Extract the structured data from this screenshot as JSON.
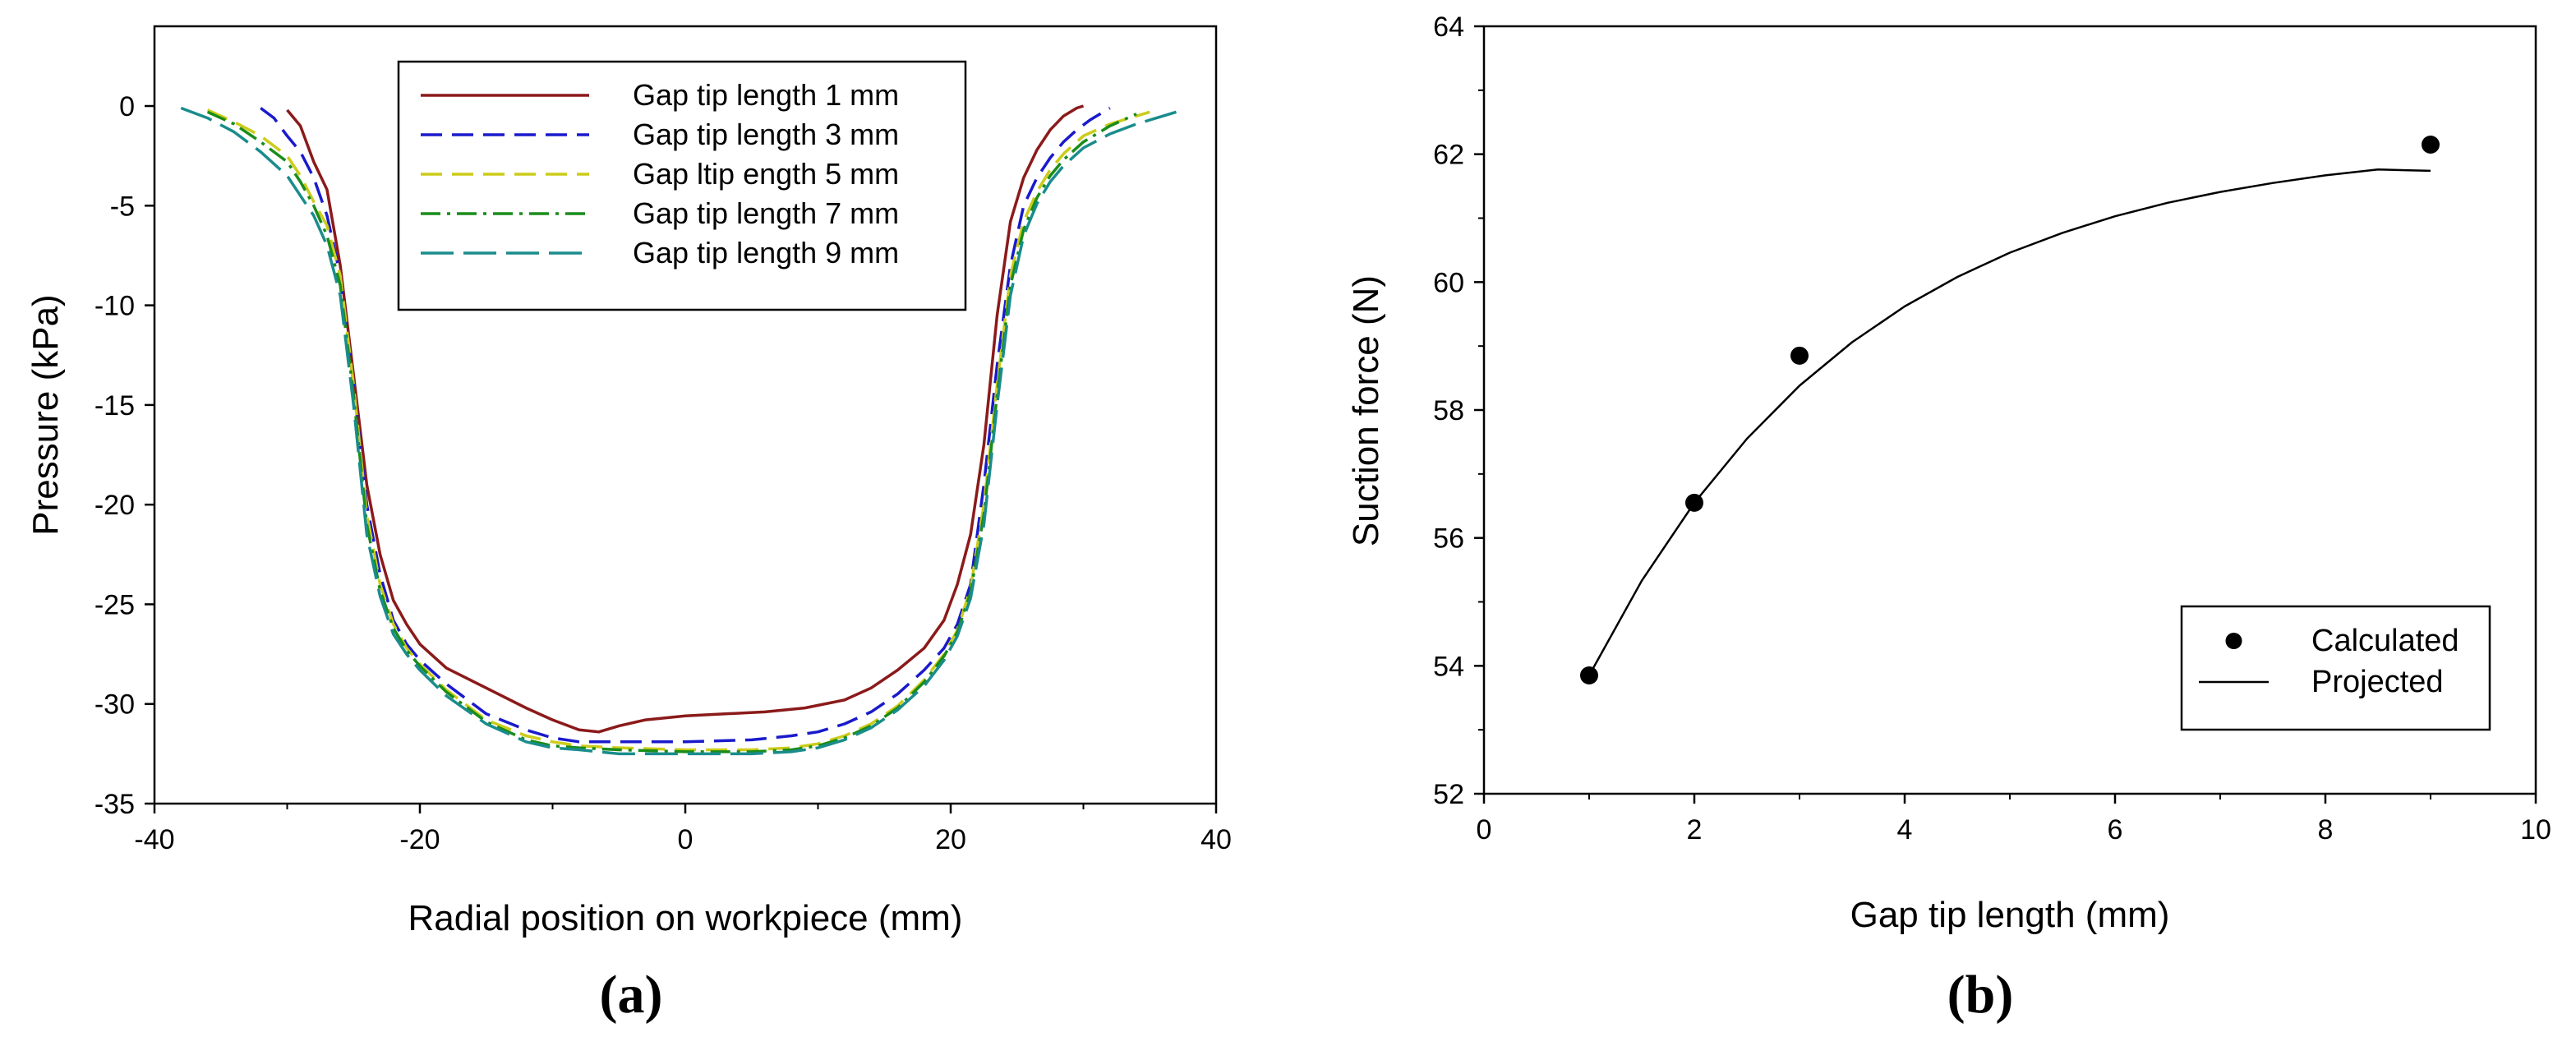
{
  "charts": [
    {
      "type": "line",
      "panel_label": "(a)",
      "title": "",
      "xlabel": "Radial position on workpiece (mm)",
      "ylabel": "Pressure (kPa)",
      "xlim": [
        -40,
        40
      ],
      "ylim": [
        -35,
        4
      ],
      "xticks": [
        -40,
        -20,
        0,
        20,
        40
      ],
      "yticks": [
        0,
        -5,
        -10,
        -15,
        -20,
        -25,
        -30,
        -35
      ],
      "grid": false,
      "legend_position": "top-center",
      "series": [
        {
          "name": "Gap tip length 1 mm",
          "color": "#8b1a1a",
          "dash": "solid",
          "x": [
            -30,
            -29,
            -28,
            -27,
            -26,
            -25,
            -24,
            -23,
            -22,
            -21,
            -20,
            -18,
            -15,
            -12,
            -10,
            -8,
            -6.5,
            -5,
            -3,
            0,
            3,
            6,
            9,
            12,
            14,
            16,
            18,
            19.5,
            20.5,
            21.5,
            22.5,
            23.5,
            24.5,
            25.5,
            26.5,
            27.5,
            28.5,
            29.5,
            30
          ],
          "values": [
            -0.2,
            -1,
            -2.8,
            -4.2,
            -8,
            -13.5,
            -19,
            -22.5,
            -24.8,
            -26,
            -27,
            -28.2,
            -29.2,
            -30.2,
            -30.8,
            -31.3,
            -31.4,
            -31.1,
            -30.8,
            -30.6,
            -30.5,
            -30.4,
            -30.2,
            -29.8,
            -29.2,
            -28.3,
            -27.2,
            -25.8,
            -24,
            -21.5,
            -17,
            -10.5,
            -5.8,
            -3.6,
            -2.2,
            -1.2,
            -0.5,
            -0.1,
            0
          ]
        },
        {
          "name": "Gap tip length 3 mm",
          "color": "#1a1acc",
          "dash": "dash",
          "x": [
            -32,
            -31,
            -30,
            -29,
            -28,
            -27,
            -26,
            -25,
            -24,
            -23,
            -22,
            -21,
            -20,
            -18,
            -15,
            -12,
            -10,
            -8,
            -5,
            0,
            5,
            8,
            10,
            12,
            14,
            16,
            18,
            19.5,
            20.5,
            21.5,
            22.5,
            23.5,
            24.5,
            25.5,
            26.5,
            27.5,
            28.5,
            29.5,
            30.5,
            31.5,
            32
          ],
          "values": [
            -0.1,
            -0.6,
            -1.5,
            -2.3,
            -3.6,
            -5.5,
            -8.5,
            -14,
            -20,
            -23.5,
            -25.8,
            -27,
            -27.8,
            -29,
            -30.5,
            -31.3,
            -31.7,
            -31.9,
            -31.9,
            -31.9,
            -31.8,
            -31.6,
            -31.4,
            -31,
            -30.4,
            -29.5,
            -28.3,
            -27.2,
            -26,
            -24,
            -19,
            -13,
            -8,
            -5,
            -3.6,
            -2.6,
            -1.8,
            -1.2,
            -0.7,
            -0.3,
            -0.1
          ]
        },
        {
          "name": "Gap ltip ength 5 mm",
          "color": "#cccc1a",
          "dash": "dash",
          "x": [
            -36,
            -34,
            -32,
            -30,
            -29,
            -28,
            -27,
            -26,
            -25,
            -24,
            -23,
            -22,
            -21,
            -20,
            -18,
            -15,
            -12,
            -10,
            -8,
            -5,
            0,
            5,
            8,
            10,
            12,
            14,
            16,
            18,
            19.5,
            20.5,
            21.5,
            22.5,
            23.5,
            24.5,
            25.5,
            26.5,
            27.5,
            28.5,
            30,
            32,
            34,
            35
          ],
          "values": [
            -0.2,
            -0.8,
            -1.5,
            -2.5,
            -3.5,
            -4.8,
            -6,
            -8.5,
            -14,
            -20.5,
            -24,
            -26,
            -27.2,
            -28,
            -29.3,
            -30.8,
            -31.6,
            -31.9,
            -32.1,
            -32.2,
            -32.3,
            -32.3,
            -32.2,
            -32,
            -31.6,
            -31,
            -30.1,
            -28.8,
            -27.5,
            -26.3,
            -24.2,
            -20,
            -14,
            -8.5,
            -5.8,
            -4.3,
            -3.2,
            -2.4,
            -1.5,
            -0.9,
            -0.5,
            -0.3
          ]
        },
        {
          "name": "Gap tip length 7 mm",
          "color": "#1a8c1a",
          "dash": "dashdot",
          "x": [
            -36,
            -34,
            -32,
            -30,
            -29,
            -28,
            -27,
            -26,
            -25,
            -24,
            -23,
            -22,
            -21,
            -20,
            -18,
            -15,
            -12,
            -10,
            -8,
            -5,
            0,
            5,
            8,
            10,
            12,
            14,
            16,
            18,
            19.5,
            20.5,
            21.5,
            22.5,
            23.5,
            24.5,
            25.5,
            26.5,
            27.5,
            28.5,
            30,
            32,
            34
          ],
          "values": [
            -0.3,
            -0.9,
            -1.8,
            -2.8,
            -3.8,
            -5,
            -6.5,
            -9,
            -14.5,
            -21,
            -24.3,
            -26.2,
            -27.3,
            -28.1,
            -29.4,
            -30.9,
            -31.8,
            -32.1,
            -32.2,
            -32.3,
            -32.4,
            -32.4,
            -32.3,
            -32.1,
            -31.7,
            -31.1,
            -30.2,
            -28.9,
            -27.6,
            -26.4,
            -24.4,
            -20.5,
            -14.5,
            -9,
            -6.2,
            -4.6,
            -3.5,
            -2.7,
            -1.8,
            -1,
            -0.4
          ]
        },
        {
          "name": "Gap tip length 9 mm",
          "color": "#1a8c8c",
          "dash": "longdash",
          "x": [
            -38,
            -36,
            -34,
            -32,
            -30,
            -29,
            -28,
            -27,
            -26,
            -25,
            -24,
            -23,
            -22,
            -21,
            -20,
            -18,
            -15,
            -12,
            -10,
            -8,
            -5,
            0,
            5,
            8,
            10,
            12,
            14,
            16,
            18,
            19.5,
            20.5,
            21.5,
            22.5,
            23.5,
            24.5,
            25.5,
            26.5,
            27.5,
            28.5,
            30,
            32,
            34,
            36,
            37
          ],
          "values": [
            -0.1,
            -0.6,
            -1.3,
            -2.3,
            -3.5,
            -4.5,
            -5.5,
            -7,
            -9.5,
            -15,
            -21.5,
            -24.6,
            -26.5,
            -27.5,
            -28.3,
            -29.6,
            -31,
            -31.9,
            -32.2,
            -32.3,
            -32.5,
            -32.5,
            -32.5,
            -32.4,
            -32.2,
            -31.8,
            -31.2,
            -30.3,
            -29.1,
            -27.8,
            -26.6,
            -24.7,
            -21,
            -15,
            -9.5,
            -6.5,
            -4.9,
            -3.8,
            -3,
            -2.1,
            -1.4,
            -0.9,
            -0.5,
            -0.3
          ]
        }
      ]
    },
    {
      "type": "scatter",
      "panel_label": "(b)",
      "title": "",
      "xlabel": "Gap tip length (mm)",
      "ylabel": "Suction force (N)",
      "xlim": [
        0,
        10
      ],
      "ylim": [
        52,
        64
      ],
      "xticks": [
        0,
        2,
        4,
        6,
        8,
        10
      ],
      "yticks": [
        52,
        54,
        56,
        58,
        60,
        62,
        64
      ],
      "grid": false,
      "legend_position": "bottom-right",
      "series": [
        {
          "name": "Calculated",
          "kind": "scatter",
          "color": "#000000",
          "x": [
            1,
            2,
            3,
            9
          ],
          "values": [
            53.85,
            56.55,
            58.85,
            62.15
          ]
        },
        {
          "name": "Projected",
          "kind": "line",
          "color": "#000000",
          "x": [
            1,
            1.5,
            2,
            2.5,
            3,
            3.5,
            4,
            4.5,
            5,
            5.5,
            6,
            6.5,
            7,
            7.5,
            8,
            8.5,
            9
          ],
          "values": [
            53.85,
            55.33,
            56.55,
            57.55,
            58.38,
            59.06,
            59.62,
            60.08,
            60.46,
            60.77,
            61.03,
            61.24,
            61.41,
            61.55,
            61.67,
            61.76,
            61.74
          ]
        }
      ]
    }
  ]
}
